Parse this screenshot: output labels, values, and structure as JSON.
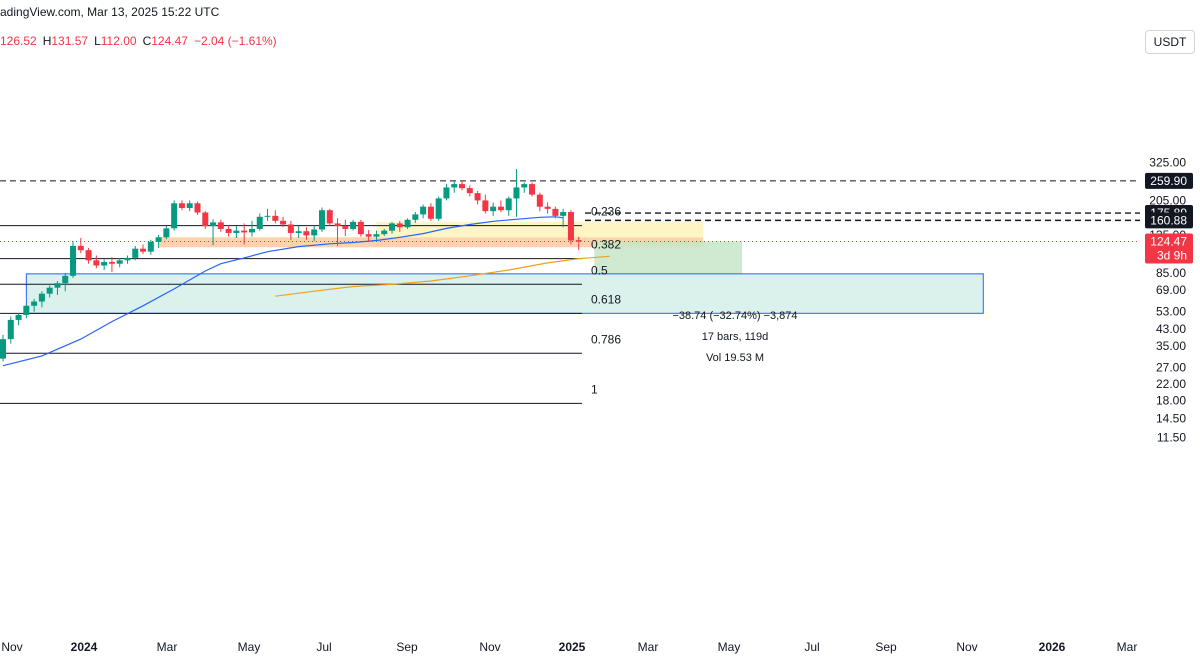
{
  "header": {
    "source_line": "adingView.com, Mar 13, 2025 15:22 UTC",
    "open_value": "126.52",
    "high_label": "H",
    "high_value": "131.57",
    "low_label": "L",
    "low_value": "112.00",
    "close_label": "C",
    "close_value": "124.47",
    "change_value": "−2.04 (−1.61%)"
  },
  "price_scale": {
    "unit": "USDT",
    "ticks": [
      "325.00",
      "205.00",
      "135.00",
      "105.00",
      "85.00",
      "69.00",
      "53.00",
      "43.00",
      "35.00",
      "27.00",
      "22.00",
      "18.00",
      "14.50",
      "11.50"
    ],
    "tick_values": [
      325,
      205,
      135,
      105,
      85,
      69,
      53,
      43,
      35,
      27,
      22,
      18,
      14.5,
      11.5
    ]
  },
  "time_scale": {
    "labels": [
      "Nov",
      "2024",
      "Mar",
      "May",
      "Jul",
      "Sep",
      "Nov",
      "2025",
      "Mar",
      "May",
      "Jul",
      "Sep",
      "Nov",
      "2026",
      "Mar"
    ],
    "bold": [
      false,
      true,
      false,
      false,
      false,
      false,
      false,
      true,
      false,
      false,
      false,
      false,
      false,
      true,
      false
    ]
  },
  "price_labels": {
    "level_259": "259.90",
    "level_175": "175.89",
    "level_160": "160.88",
    "last_price": "124.47",
    "countdown": "3d 9h"
  },
  "fib_levels": [
    {
      "label": "0.236",
      "price": 151
    },
    {
      "label": "0.382",
      "price": 101
    },
    {
      "label": "0.5",
      "price": 74
    },
    {
      "label": "0.618",
      "price": 52
    },
    {
      "label": "0.786",
      "price": 32
    },
    {
      "label": "1",
      "price": 17.4
    }
  ],
  "measure": {
    "line1": "−38.74 (−32.74%) −3,874",
    "line2": "17 bars, 119d",
    "line3": "Vol 19.53 M"
  },
  "colors": {
    "up": "#089981",
    "down": "#f23645",
    "ma_short": "#2962ff",
    "ma_long": "#f0a020",
    "demand_zone": "#f9c99a",
    "supply_zone": "#fdf3b8",
    "target_zone": "#c8e6c9",
    "measure_box_fill": "#d6efea",
    "measure_box_border": "#2962ff"
  },
  "chart_data": {
    "type": "candlestick",
    "timeframe": "1W",
    "title": "",
    "ohlc": [
      [
        30,
        40,
        29,
        38
      ],
      [
        38,
        50,
        36,
        48
      ],
      [
        48,
        52,
        45,
        51
      ],
      [
        51,
        58,
        49,
        57
      ],
      [
        57,
        62,
        53,
        60
      ],
      [
        60,
        68,
        56,
        66
      ],
      [
        66,
        73,
        63,
        71
      ],
      [
        71,
        77,
        65,
        75
      ],
      [
        75,
        85,
        68,
        82
      ],
      [
        82,
        125,
        80,
        118
      ],
      [
        118,
        130,
        108,
        112
      ],
      [
        112,
        115,
        95,
        99
      ],
      [
        99,
        105,
        90,
        93
      ],
      [
        93,
        100,
        88,
        97
      ],
      [
        97,
        103,
        86,
        95
      ],
      [
        95,
        102,
        91,
        99
      ],
      [
        99,
        105,
        95,
        102
      ],
      [
        102,
        118,
        99,
        114
      ],
      [
        114,
        120,
        107,
        110
      ],
      [
        110,
        127,
        106,
        124
      ],
      [
        124,
        135,
        115,
        131
      ],
      [
        131,
        150,
        128,
        146
      ],
      [
        146,
        205,
        142,
        198
      ],
      [
        198,
        205,
        182,
        187
      ],
      [
        187,
        205,
        180,
        198
      ],
      [
        198,
        202,
        172,
        177
      ],
      [
        177,
        180,
        145,
        150
      ],
      [
        150,
        163,
        119,
        157
      ],
      [
        157,
        162,
        140,
        145
      ],
      [
        145,
        152,
        132,
        138
      ],
      [
        138,
        150,
        130,
        142
      ],
      [
        142,
        155,
        120,
        139
      ],
      [
        139,
        160,
        132,
        145
      ],
      [
        145,
        175,
        142,
        168
      ],
      [
        168,
        185,
        160,
        170
      ],
      [
        170,
        182,
        155,
        160
      ],
      [
        160,
        168,
        148,
        153
      ],
      [
        153,
        160,
        127,
        138
      ],
      [
        138,
        150,
        130,
        141
      ],
      [
        141,
        148,
        127,
        134
      ],
      [
        134,
        150,
        125,
        144
      ],
      [
        144,
        188,
        140,
        182
      ],
      [
        182,
        185,
        150,
        155
      ],
      [
        155,
        165,
        118,
        150
      ],
      [
        150,
        162,
        133,
        145
      ],
      [
        145,
        162,
        142,
        158
      ],
      [
        158,
        162,
        132,
        136
      ],
      [
        136,
        143,
        125,
        132
      ],
      [
        132,
        142,
        126,
        136
      ],
      [
        136,
        145,
        133,
        142
      ],
      [
        142,
        158,
        137,
        155
      ],
      [
        155,
        160,
        140,
        148
      ],
      [
        148,
        165,
        145,
        162
      ],
      [
        162,
        178,
        156,
        173
      ],
      [
        173,
        195,
        165,
        190
      ],
      [
        190,
        198,
        160,
        164
      ],
      [
        164,
        215,
        160,
        210
      ],
      [
        210,
        250,
        205,
        240
      ],
      [
        240,
        258,
        225,
        250
      ],
      [
        250,
        262,
        232,
        238
      ],
      [
        238,
        246,
        215,
        224
      ],
      [
        224,
        230,
        195,
        205
      ],
      [
        205,
        220,
        175,
        180
      ],
      [
        180,
        200,
        170,
        190
      ],
      [
        190,
        205,
        178,
        182
      ],
      [
        182,
        215,
        170,
        210
      ],
      [
        210,
        300,
        168,
        240
      ],
      [
        240,
        255,
        225,
        250
      ],
      [
        250,
        255,
        215,
        220
      ],
      [
        220,
        225,
        180,
        190
      ],
      [
        190,
        200,
        175,
        185
      ],
      [
        185,
        190,
        165,
        170
      ],
      [
        170,
        185,
        148,
        178
      ],
      [
        178,
        182,
        120,
        126
      ],
      [
        126.52,
        131.57,
        112,
        124.47
      ]
    ],
    "ma_short": [
      [
        0,
        27.5
      ],
      [
        5,
        31
      ],
      [
        10,
        38
      ],
      [
        14,
        47
      ],
      [
        18,
        57
      ],
      [
        22,
        70
      ],
      [
        26,
        87
      ],
      [
        28,
        95
      ],
      [
        31,
        102
      ],
      [
        34,
        110
      ],
      [
        38,
        117
      ],
      [
        42,
        121
      ],
      [
        45,
        123
      ],
      [
        48,
        126
      ],
      [
        51,
        131
      ],
      [
        54,
        137
      ],
      [
        57,
        146
      ],
      [
        60,
        153
      ],
      [
        63,
        159
      ],
      [
        66,
        163
      ],
      [
        69,
        167
      ],
      [
        71,
        168
      ],
      [
        72,
        166
      ]
    ],
    "ma_long": [
      [
        35,
        64
      ],
      [
        40,
        68
      ],
      [
        45,
        72
      ],
      [
        50,
        74
      ],
      [
        55,
        77
      ],
      [
        60,
        82
      ],
      [
        65,
        88
      ],
      [
        70,
        96
      ],
      [
        74,
        101
      ],
      [
        78,
        104
      ]
    ],
    "zones": [
      {
        "kind": "demand",
        "from_bar": 20,
        "to_bar": 90,
        "low": 116,
        "high": 131
      },
      {
        "kind": "supply",
        "from_bar": 48,
        "to_bar": 90,
        "low": 131,
        "high": 158
      },
      {
        "kind": "target",
        "from_bar": 76,
        "to_bar": 95,
        "low": 84,
        "high": 124.47
      },
      {
        "kind": "measure",
        "from_bar": 3,
        "to_bar": 126,
        "low": 52,
        "high": 84
      }
    ],
    "horizontal_levels": [
      259.9,
      175.89,
      160.88
    ],
    "last_price": 124.47
  }
}
